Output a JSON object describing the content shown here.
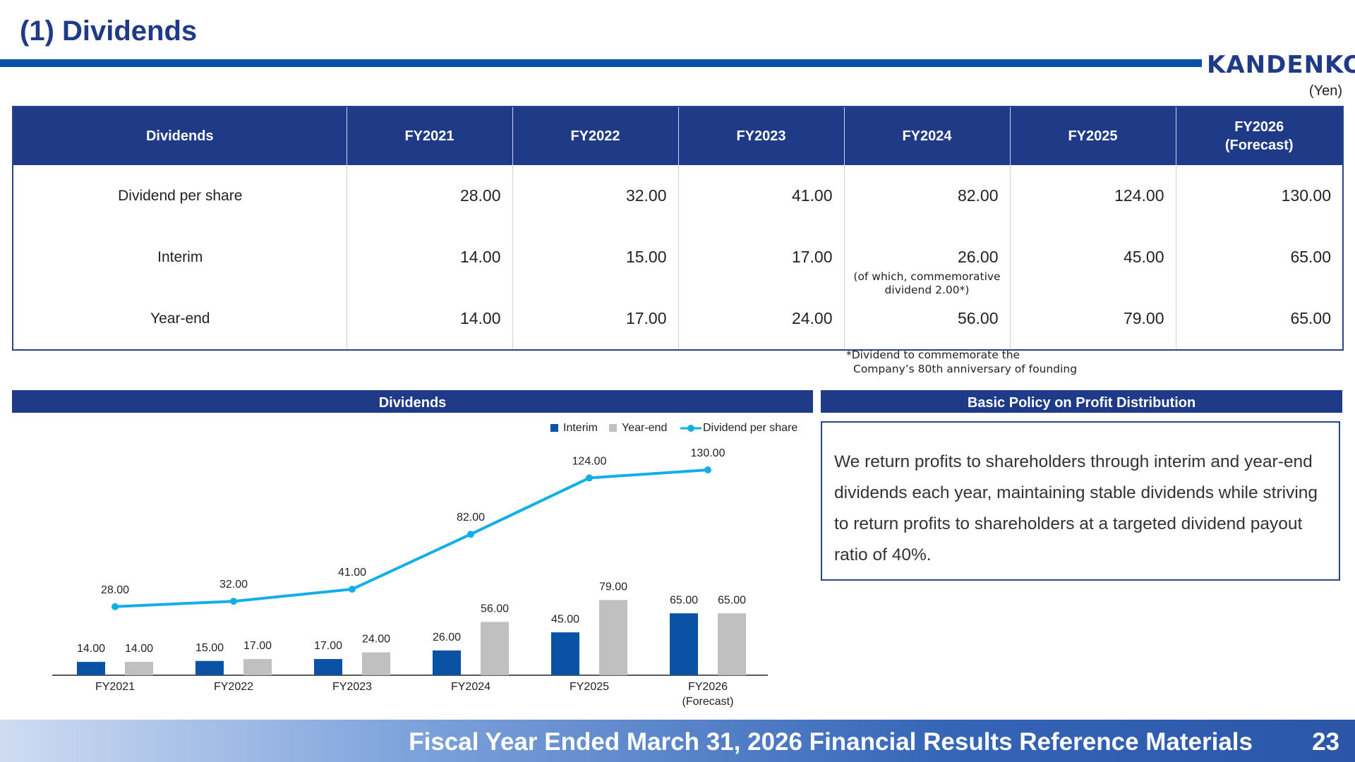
{
  "header": {
    "title": "(1) Dividends",
    "logo": "KANDENKO"
  },
  "unit": "(Yen)",
  "table": {
    "headers": [
      "Dividends",
      "FY2021",
      "FY2022",
      "FY2023",
      "FY2024",
      "FY2025",
      "FY2026",
      "(Forecast)"
    ],
    "rows": [
      {
        "label": "Dividend per share",
        "values": [
          "28.00",
          "32.00",
          "41.00",
          "82.00",
          "124.00",
          "130.00"
        ]
      },
      {
        "label": "Interim",
        "values": [
          "14.00",
          "15.00",
          "17.00",
          "26.00",
          "45.00",
          "65.00"
        ]
      },
      {
        "label": "Year-end",
        "values": [
          "14.00",
          "17.00",
          "24.00",
          "56.00",
          "79.00",
          "65.00"
        ]
      }
    ],
    "interim_note_line1": "(of which, commemorative",
    "interim_note_line2": "dividend 2.00*)"
  },
  "footnote": {
    "line1": "*Dividend to commemorate the",
    "line2": "Company’s 80th anniversary of founding"
  },
  "chart_section_title": "Dividends",
  "policy": {
    "title": "Basic Policy on Profit Distribution",
    "text": "We return profits to shareholders through interim and year-end dividends each year, maintaining stable dividends while striving to return profits to shareholders at a targeted dividend payout ratio of 40%."
  },
  "chart_data": {
    "type": "bar",
    "categories": [
      "FY2021",
      "FY2022",
      "FY2023",
      "FY2024",
      "FY2025",
      "FY2026"
    ],
    "category_sublabels": [
      "",
      "",
      "",
      "",
      "",
      "(Forecast)"
    ],
    "series": [
      {
        "name": "Interim",
        "kind": "bar",
        "color": "#0a52a3",
        "values": [
          14,
          15,
          17,
          26,
          45,
          65
        ]
      },
      {
        "name": "Year-end",
        "kind": "bar",
        "color": "#c0c0c0",
        "values": [
          14,
          17,
          24,
          56,
          79,
          65
        ]
      },
      {
        "name": "Dividend per share",
        "kind": "line",
        "color": "#12afe6",
        "values": [
          28,
          32,
          41,
          82,
          124,
          130
        ]
      }
    ],
    "legend_position": "top-right"
  },
  "footer": {
    "text": "Fiscal Year Ended March 31, 2026 Financial Results Reference Materials",
    "page": "23"
  }
}
